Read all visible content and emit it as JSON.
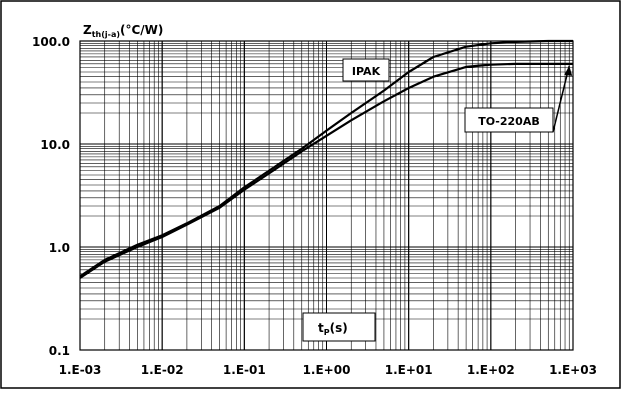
{
  "chart_data": {
    "type": "line",
    "x_scale": "log",
    "y_scale": "log",
    "xlim": [
      0.001,
      1000
    ],
    "ylim": [
      0.1,
      100
    ],
    "grid": true,
    "ylabel": {
      "main": "Z",
      "sub": "th(j-a)",
      "unit": "(°C/W)"
    },
    "xlabel": {
      "main": "t",
      "sub": "P",
      "unit": "(s)"
    },
    "x_ticks": [
      "1.E-03",
      "1.E-02",
      "1.E-01",
      "1.E+00",
      "1.E+01",
      "1.E+02",
      "1.E+03"
    ],
    "y_ticks": [
      "0.1",
      "1.0",
      "10.0",
      "100.0"
    ],
    "series": [
      {
        "name": "IPAK",
        "x": [
          0.001,
          0.002,
          0.005,
          0.01,
          0.02,
          0.05,
          0.1,
          0.2,
          0.5,
          1,
          2,
          5,
          10,
          20,
          50,
          100,
          200,
          500,
          1000
        ],
        "y": [
          0.52,
          0.75,
          1.05,
          1.3,
          1.7,
          2.5,
          3.8,
          5.5,
          9.0,
          13.5,
          20,
          33,
          50,
          70,
          88,
          95,
          98,
          100,
          100
        ]
      },
      {
        "name": "TO-220AB",
        "x": [
          0.001,
          0.002,
          0.005,
          0.01,
          0.02,
          0.05,
          0.1,
          0.2,
          0.5,
          1,
          2,
          5,
          10,
          20,
          50,
          100,
          200,
          500,
          1000
        ],
        "y": [
          0.5,
          0.72,
          1.0,
          1.25,
          1.65,
          2.4,
          3.6,
          5.2,
          8.5,
          12,
          17,
          26,
          35,
          45,
          56,
          59,
          60,
          60,
          60
        ]
      }
    ],
    "annotations": [
      {
        "text": "IPAK",
        "series": "IPAK"
      },
      {
        "text": "TO-220AB",
        "series": "TO-220AB",
        "arrow_to": [
          900,
          60
        ]
      }
    ]
  }
}
